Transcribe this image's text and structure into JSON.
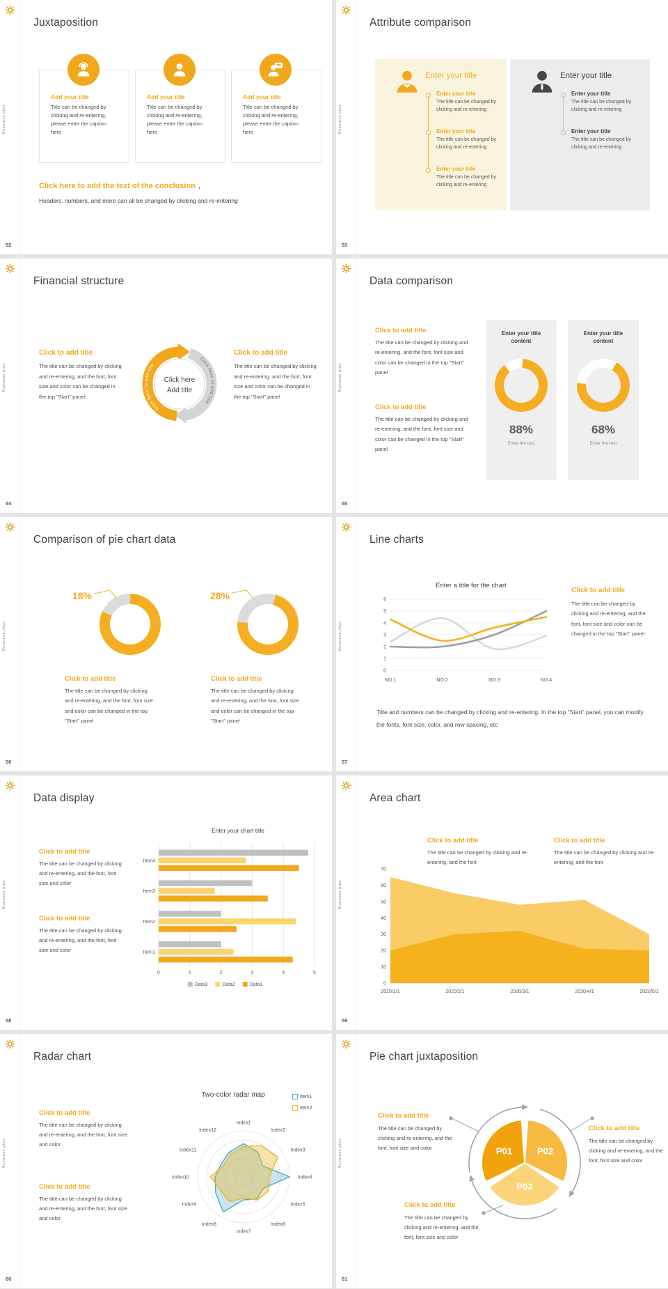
{
  "page": {
    "background": "#E4E4E4"
  },
  "common": {
    "brand": "Business plan",
    "click_to_add_title": "Click to add title",
    "enter_your_title": "Enter your title",
    "body_full": "The title can be changed by clicking and re-entering, and the font, font size and color can be changed in the top \"Start\" panel",
    "body_short": "The title can be changed by clicking and re-entering, and the font, font size and color",
    "body_mini": "The title can be changed by clicking and re-entering",
    "body_font": "The title can be changed by clicking and re-entering, and the font"
  },
  "slides": {
    "s52": {
      "number": "52",
      "title": "Juxtaposition",
      "card_title": "Add your title",
      "card_body": "Title can be changed by clicking and re-entering, please enter the caption here",
      "conclusion": "Click here to add the text of the conclusion",
      "conclusion_comma": ",",
      "conclusion_sub": "Headers, numbers, and more can all be changed by clicking and re-entering"
    },
    "s53": {
      "number": "53",
      "title": "Attribute comparison"
    },
    "s54": {
      "number": "54",
      "title": "Financial structure",
      "center_line1": "Click here",
      "center_line2": "Add title",
      "curved_text": "Click here to add title"
    },
    "s55": {
      "number": "55",
      "title": "Data comparison",
      "panel_heading": "Enter your title content",
      "enter_text": "Enter the text"
    },
    "s56": {
      "number": "56",
      "title": "Comparison of pie chart data"
    },
    "s57": {
      "number": "57",
      "title": "Line charts",
      "footnote": "Title and numbers can be changed by clicking and re-entering. In the top \"Start\" panel, you can modify the fonts, font size, color, and row spacing, etc"
    },
    "s58": {
      "number": "58",
      "title": "Data display"
    },
    "s59": {
      "number": "59",
      "title": "Area chart"
    },
    "s60": {
      "number": "60",
      "title": "Radar chart"
    },
    "s61": {
      "number": "61",
      "title": "Pie chart juxtaposition"
    }
  },
  "chart_data": [
    {
      "id": "donut-88",
      "type": "donut",
      "label": "88%",
      "percent": 88,
      "gap_percent": 12,
      "start": -40,
      "ring_color": "#F5AD21",
      "gap_color": "#FFFFFF"
    },
    {
      "id": "donut-68",
      "type": "donut",
      "label": "68%",
      "percent": 68,
      "gap_percent": 32,
      "start": -85,
      "ring_color": "#F5AD21",
      "gap_color": "#FFFFFF"
    },
    {
      "id": "donut-18",
      "type": "donut",
      "label": "18%",
      "percent": 18,
      "gap_percent": 18,
      "start": -65,
      "ring_color": "#F5AD21",
      "gap_color": "#DBDBDB"
    },
    {
      "id": "donut-28",
      "type": "donut",
      "label": "28%",
      "percent": 28,
      "gap_percent": 28,
      "start": -86,
      "ring_color": "#F5AD21",
      "gap_color": "#DBDBDB"
    },
    {
      "id": "line-trends",
      "type": "line",
      "title": "Enter a title for the chart",
      "x_labels": [
        "NO.1",
        "NO.2",
        "NO.3",
        "NO.4"
      ],
      "y_ticks": [
        0,
        1,
        2,
        3,
        4,
        5,
        6
      ],
      "ylim": [
        0,
        6
      ],
      "grid": true,
      "series": [
        {
          "name": "series-yellow",
          "color": "#F2B31C",
          "values": [
            4.3,
            2.5,
            3.6,
            4.5
          ]
        },
        {
          "name": "series-dark-gray",
          "color": "#9E9E9E",
          "values": [
            2,
            2,
            3,
            5
          ]
        },
        {
          "name": "series-light-gray",
          "color": "#D8D8D8",
          "values": [
            2.4,
            4.4,
            1.8,
            2.9
          ]
        }
      ]
    },
    {
      "id": "hbar-items",
      "type": "bar",
      "orientation": "horizontal",
      "title": "Enter your chart title",
      "categories": [
        "Item1",
        "Item2",
        "Item3",
        "Item4"
      ],
      "x_ticks": [
        0,
        1,
        2,
        3,
        4,
        5
      ],
      "xlim": [
        0,
        5
      ],
      "legend_position": "bottom",
      "legend_order": [
        "Data3",
        "Data2",
        "Data1"
      ],
      "series": [
        {
          "name": "Data1",
          "color": "#F2A81D",
          "values": [
            4.3,
            2.5,
            3.5,
            4.5
          ]
        },
        {
          "name": "Data2",
          "color": "#FBD470",
          "values": [
            2.4,
            4.4,
            1.8,
            2.8
          ]
        },
        {
          "name": "Data3",
          "color": "#BFBFBF",
          "values": [
            2,
            2,
            3,
            4.8
          ]
        }
      ]
    },
    {
      "id": "area-trend",
      "type": "area",
      "x_labels": [
        "2020/1/1",
        "2020/2/1",
        "2020/3/1",
        "2020/4/1",
        "2020/5/1"
      ],
      "y_ticks": [
        0,
        10,
        20,
        30,
        40,
        50,
        60,
        70
      ],
      "ylim": [
        0,
        70
      ],
      "series": [
        {
          "name": "series-light",
          "color": "#FACC66",
          "values": [
            65,
            55,
            48,
            51,
            30
          ]
        },
        {
          "name": "series-dark",
          "color": "#F5B11C",
          "values": [
            20,
            30,
            32,
            21,
            20
          ]
        }
      ]
    },
    {
      "id": "radar-two",
      "type": "radar",
      "title": "Two-color radar map",
      "max": 5,
      "rings": 5,
      "legend_position": "top-right",
      "axes": [
        "Index1",
        "Index2",
        "Index3",
        "Index4",
        "Index5",
        "Index6",
        "Index7",
        "Index8",
        "Index9",
        "Index10",
        "Index11",
        "Index12"
      ],
      "series": [
        {
          "name": "Item1",
          "color": "#4BACC6",
          "fill": "rgba(75,172,198,0.30)",
          "values": [
            3.6,
            3.1,
            2.4,
            5,
            2.5,
            2.8,
            2.5,
            4.4,
            3.5,
            3.1,
            2.8,
            3.1
          ]
        },
        {
          "name": "Item2",
          "color": "#EFB428",
          "fill": "rgba(239,180,40,0.38)",
          "values": [
            3.3,
            3.9,
            4.3,
            2.8,
            3.1,
            2.9,
            2.3,
            3.1,
            2.9,
            3.6,
            2.5,
            2.8
          ]
        }
      ]
    },
    {
      "id": "pie-p",
      "type": "pie",
      "labels": [
        "P01",
        "P02",
        "P03"
      ],
      "values": [
        33.3,
        33.3,
        33.4
      ],
      "colors": [
        "#F0A30A",
        "#F6BA41",
        "#FBD47A"
      ],
      "label_color": "#FFFFFF",
      "ring_color": "#9AA5B1"
    }
  ]
}
